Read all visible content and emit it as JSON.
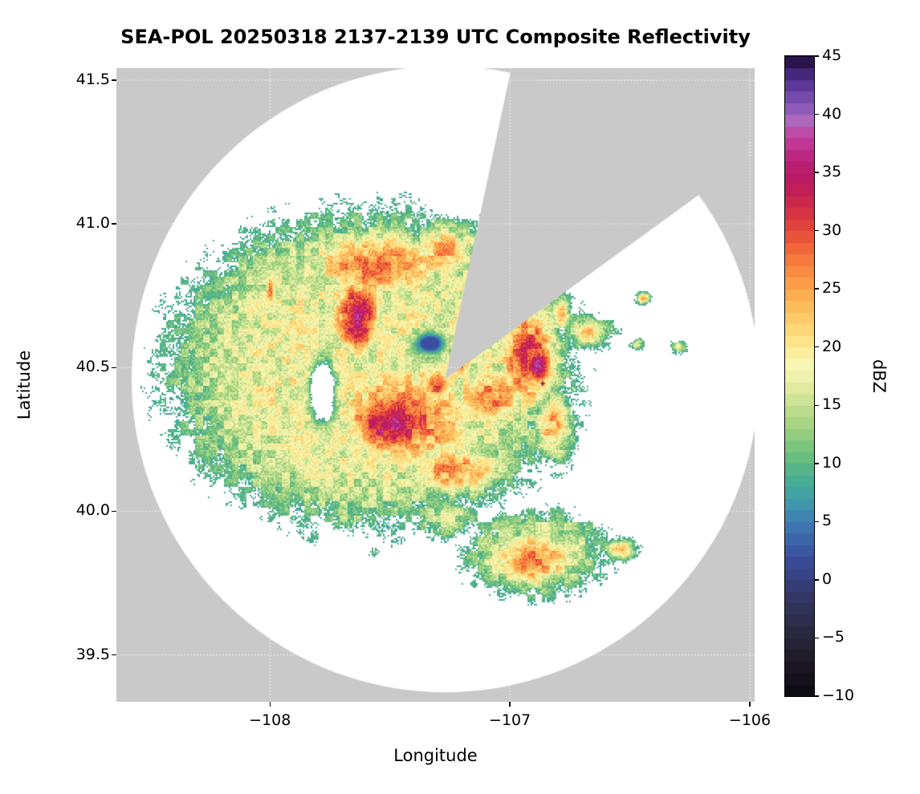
{
  "chart_data": {
    "type": "heatmap",
    "title": "SEA-POL 20250318 2137-2139 UTC Composite Reflectivity",
    "xlabel": "Longitude",
    "ylabel": "Latitude",
    "xlim": [
      -108.64,
      -105.98
    ],
    "ylim": [
      39.337,
      41.542
    ],
    "xticks": {
      "values": [
        -108,
        -107,
        -106
      ],
      "labels": [
        "−108",
        "−107",
        "−106"
      ]
    },
    "yticks": {
      "values": [
        39.5,
        40.0,
        40.5,
        41.0,
        41.5
      ],
      "labels": [
        "39.5",
        "40.0",
        "40.5",
        "41.0",
        "41.5"
      ]
    },
    "grid": true,
    "background_color": "#c9c9c9",
    "colorbar": {
      "label": "dBZ",
      "min": -10,
      "max": 45,
      "ticks": {
        "values": [
          45,
          40,
          35,
          30,
          25,
          20,
          15,
          10,
          5,
          0,
          -5,
          -10
        ],
        "labels": [
          "45",
          "40",
          "35",
          "30",
          "25",
          "20",
          "15",
          "10",
          "5",
          "0",
          "−5",
          "−10"
        ]
      },
      "stops": [
        [
          -10,
          "#0b0810"
        ],
        [
          -7,
          "#1d1a26"
        ],
        [
          -4,
          "#2c2b44"
        ],
        [
          -1,
          "#35386b"
        ],
        [
          2,
          "#3a4f9e"
        ],
        [
          5,
          "#3f7cb5"
        ],
        [
          7,
          "#3fa0a8"
        ],
        [
          9,
          "#4bb18b"
        ],
        [
          11,
          "#71c17e"
        ],
        [
          13,
          "#9ed17f"
        ],
        [
          15,
          "#c5e08e"
        ],
        [
          17,
          "#e9efa6"
        ],
        [
          18.5,
          "#f7f7b2"
        ],
        [
          20,
          "#fdea92"
        ],
        [
          22,
          "#fdd271"
        ],
        [
          24,
          "#fcb455"
        ],
        [
          26,
          "#fa9445"
        ],
        [
          28,
          "#f4703b"
        ],
        [
          30,
          "#e54a38"
        ],
        [
          32,
          "#d12d47"
        ],
        [
          34,
          "#bd1a5c"
        ],
        [
          36,
          "#b81f77"
        ],
        [
          38,
          "#c43f9e"
        ],
        [
          39.5,
          "#ab68bd"
        ],
        [
          41,
          "#7f54b5"
        ],
        [
          43,
          "#512f91"
        ],
        [
          45,
          "#1e0b33"
        ]
      ]
    },
    "radar": {
      "center_lon": -107.27,
      "center_lat": 40.46,
      "range_deg": 1.09,
      "blocked_sector_deg": [
        12,
        54
      ]
    },
    "echoes": [
      {
        "lon": -107.586,
        "lat": 40.495,
        "rx": 0.84,
        "ry": 0.545,
        "dbz": 18,
        "p": 3,
        "k": 0.8
      },
      {
        "lon": -107.553,
        "lat": 40.858,
        "rx": 0.4,
        "ry": 0.155,
        "dbz": 28
      },
      {
        "lon": -107.637,
        "lat": 40.677,
        "rx": 0.127,
        "ry": 0.182,
        "dbz": 35
      },
      {
        "lon": -107.486,
        "lat": 40.308,
        "rx": 0.26,
        "ry": 0.162,
        "dbz": 36
      },
      {
        "lon": -107.436,
        "lat": 40.327,
        "rx": 0.418,
        "ry": 0.251,
        "dbz": 29
      },
      {
        "lon": -107.235,
        "lat": 40.146,
        "rx": 0.3,
        "ry": 0.117,
        "dbz": 26
      },
      {
        "lon": -107.078,
        "lat": 40.397,
        "rx": 0.234,
        "ry": 0.14,
        "dbz": 27
      },
      {
        "lon": -106.924,
        "lat": 40.537,
        "rx": 0.16,
        "ry": 0.237,
        "dbz": 32
      },
      {
        "lon": -106.89,
        "lat": 40.509,
        "rx": 0.087,
        "ry": 0.117,
        "dbz": 37
      },
      {
        "lon": -106.864,
        "lat": 40.445,
        "rx": 0.017,
        "ry": 0.014,
        "dbz": 45,
        "k": 2
      },
      {
        "lon": -107.279,
        "lat": 40.9,
        "rx": 0.184,
        "ry": 0.126,
        "dbz": 25
      },
      {
        "lon": -106.667,
        "lat": 40.621,
        "rx": 0.107,
        "ry": 0.067,
        "dbz": 22
      },
      {
        "lon": -106.44,
        "lat": 40.741,
        "rx": 0.033,
        "ry": 0.025,
        "dbz": 26
      },
      {
        "lon": -106.289,
        "lat": 40.573,
        "rx": 0.04,
        "ry": 0.028,
        "dbz": 16
      },
      {
        "lon": -106.466,
        "lat": 40.579,
        "rx": 0.033,
        "ry": 0.022,
        "dbz": 19
      },
      {
        "lon": -106.907,
        "lat": 39.833,
        "rx": 0.251,
        "ry": 0.126,
        "dbz": 27
      },
      {
        "lon": -106.891,
        "lat": 39.853,
        "rx": 0.334,
        "ry": 0.173,
        "dbz": 16,
        "p": 2
      },
      {
        "lon": -106.543,
        "lat": 39.867,
        "rx": 0.074,
        "ry": 0.045,
        "dbz": 24
      },
      {
        "lon": -107.998,
        "lat": 40.766,
        "rx": 0.03,
        "ry": 0.073,
        "dbz": 27
      },
      {
        "lon": -107.998,
        "lat": 40.76,
        "rx": 0.054,
        "ry": 0.106,
        "dbz": 12
      },
      {
        "lon": -108.048,
        "lat": 40.328,
        "rx": 0.1,
        "ry": 0.134,
        "dbz": 13
      },
      {
        "lon": -107.921,
        "lat": 40.523,
        "rx": 0.184,
        "ry": 0.223,
        "dbz": 12
      },
      {
        "lon": -108.122,
        "lat": 40.227,
        "rx": 0.047,
        "ry": 0.034,
        "dbz": 12
      },
      {
        "lon": -107.68,
        "lat": 39.993,
        "rx": 0.14,
        "ry": 0.073,
        "dbz": 14
      },
      {
        "lon": -107.814,
        "lat": 39.903,
        "rx": 0.04,
        "ry": 0.028,
        "dbz": 11
      },
      {
        "lon": -107.563,
        "lat": 39.861,
        "rx": 0.033,
        "ry": 0.022,
        "dbz": 9
      },
      {
        "lon": -107.269,
        "lat": 39.979,
        "rx": 0.174,
        "ry": 0.078,
        "dbz": 16
      },
      {
        "lon": -106.824,
        "lat": 40.3,
        "rx": 0.1,
        "ry": 0.154,
        "dbz": 24
      },
      {
        "lon": -107.168,
        "lat": 40.942,
        "rx": 0.06,
        "ry": 0.039,
        "dbz": 21
      },
      {
        "lon": -107.024,
        "lat": 40.668,
        "rx": 0.094,
        "ry": 0.095,
        "dbz": 30
      },
      {
        "lon": -106.783,
        "lat": 40.691,
        "rx": 0.05,
        "ry": 0.07,
        "dbz": 23
      },
      {
        "lon": -107.519,
        "lat": 40.956,
        "rx": 0.234,
        "ry": 0.07,
        "dbz": 14
      },
      {
        "lon": -107.21,
        "lat": 40.52,
        "rx": 0.08,
        "ry": 0.06,
        "dbz": 29
      },
      {
        "lon": -107.3,
        "lat": 40.44,
        "rx": 0.07,
        "ry": 0.09,
        "dbz": 30
      }
    ],
    "overrides": [
      {
        "lon": -107.332,
        "lat": 40.584,
        "rx": 0.08,
        "ry": 0.047,
        "dbz": 2
      },
      {
        "lon": -107.78,
        "lat": 40.417,
        "rx": 0.05,
        "ry": 0.106,
        "dbz": -15
      }
    ]
  }
}
